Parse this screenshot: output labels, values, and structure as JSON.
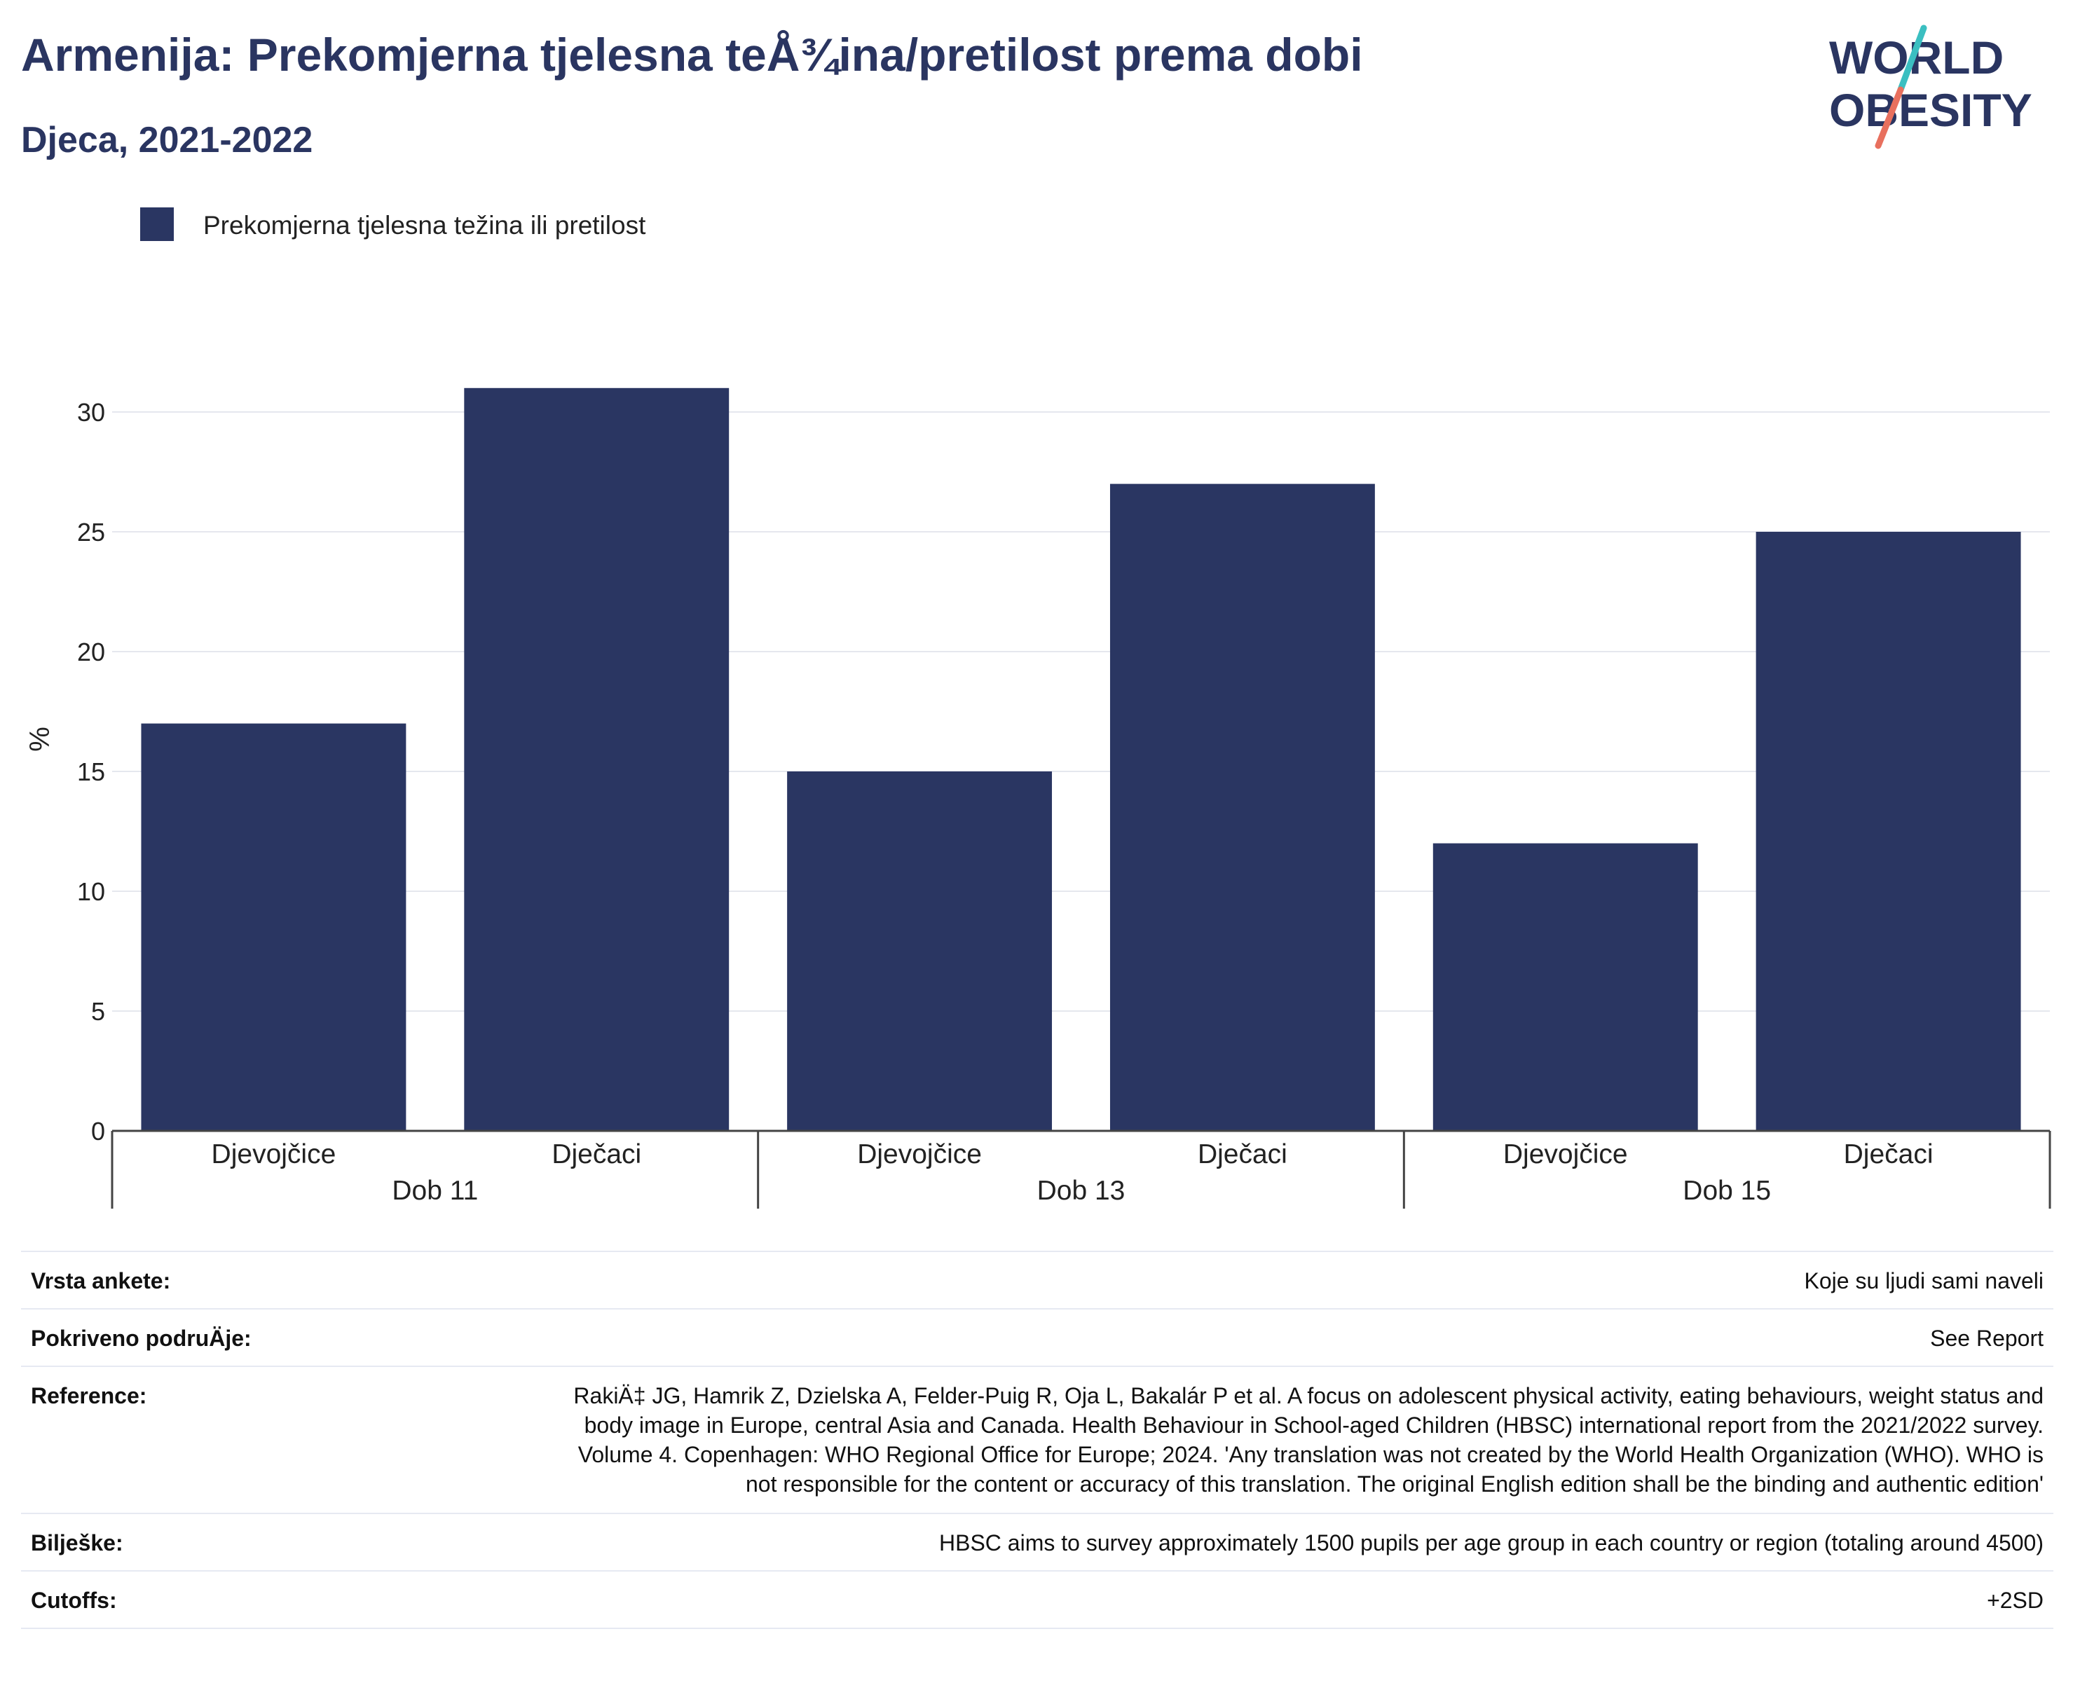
{
  "header": {
    "title": "Armenija: Prekomjerna tjelesna teÅ¾ina/pretilost prema dobi",
    "subtitle": "Djeca, 2021-2022"
  },
  "logo": {
    "line1": "WORLD",
    "line2": "OBESITY",
    "colors": {
      "text": "#2a3561",
      "slash_top": "#3bbfc1",
      "slash_bottom": "#e8705e"
    }
  },
  "colors": {
    "bar": "#2a3662",
    "grid": "#e5e7ee",
    "axis": "#444444"
  },
  "chart_data": {
    "type": "bar",
    "ylabel": "%",
    "ylim": [
      0,
      32
    ],
    "yticks": [
      0,
      5,
      10,
      15,
      20,
      25,
      30
    ],
    "grid": true,
    "legend_position": "top-left",
    "groups": [
      "Dob 11",
      "Dob 13",
      "Dob 15"
    ],
    "categories": [
      "Djevojčice",
      "Dječaci",
      "Djevojčice",
      "Dječaci",
      "Djevojčice",
      "Dječaci"
    ],
    "series": [
      {
        "name": "Prekomjerna tjelesna težina ili pretilost",
        "values": [
          17,
          31,
          15,
          27,
          12,
          25
        ]
      }
    ]
  },
  "info": [
    {
      "label": "Vrsta ankete:",
      "value": "Koje su ljudi sami naveli"
    },
    {
      "label": "Pokriveno podruÄje:",
      "value": "See Report"
    },
    {
      "label": "Reference:",
      "value": "RakiÄ‡ JG, Hamrik Z, Dzielska A, Felder-Puig R, Oja L, Bakalár P et al. A focus on adolescent physical activity, eating behaviours, weight status and body image in Europe, central Asia and Canada. Health Behaviour in School-aged Children (HBSC) international report from the 2021/2022 survey. Volume 4. Copenhagen: WHO Regional Office for Europe; 2024. 'Any translation was not created by the World Health Organization (WHO). WHO is not responsible for the content or accuracy of this translation. The original English edition shall be the binding and authentic edition'"
    },
    {
      "label": "Bilješke:",
      "value": "HBSC aims to survey approximately 1500 pupils per age group in each country or region (totaling around 4500)"
    },
    {
      "label": "Cutoffs:",
      "value": "+2SD"
    }
  ]
}
